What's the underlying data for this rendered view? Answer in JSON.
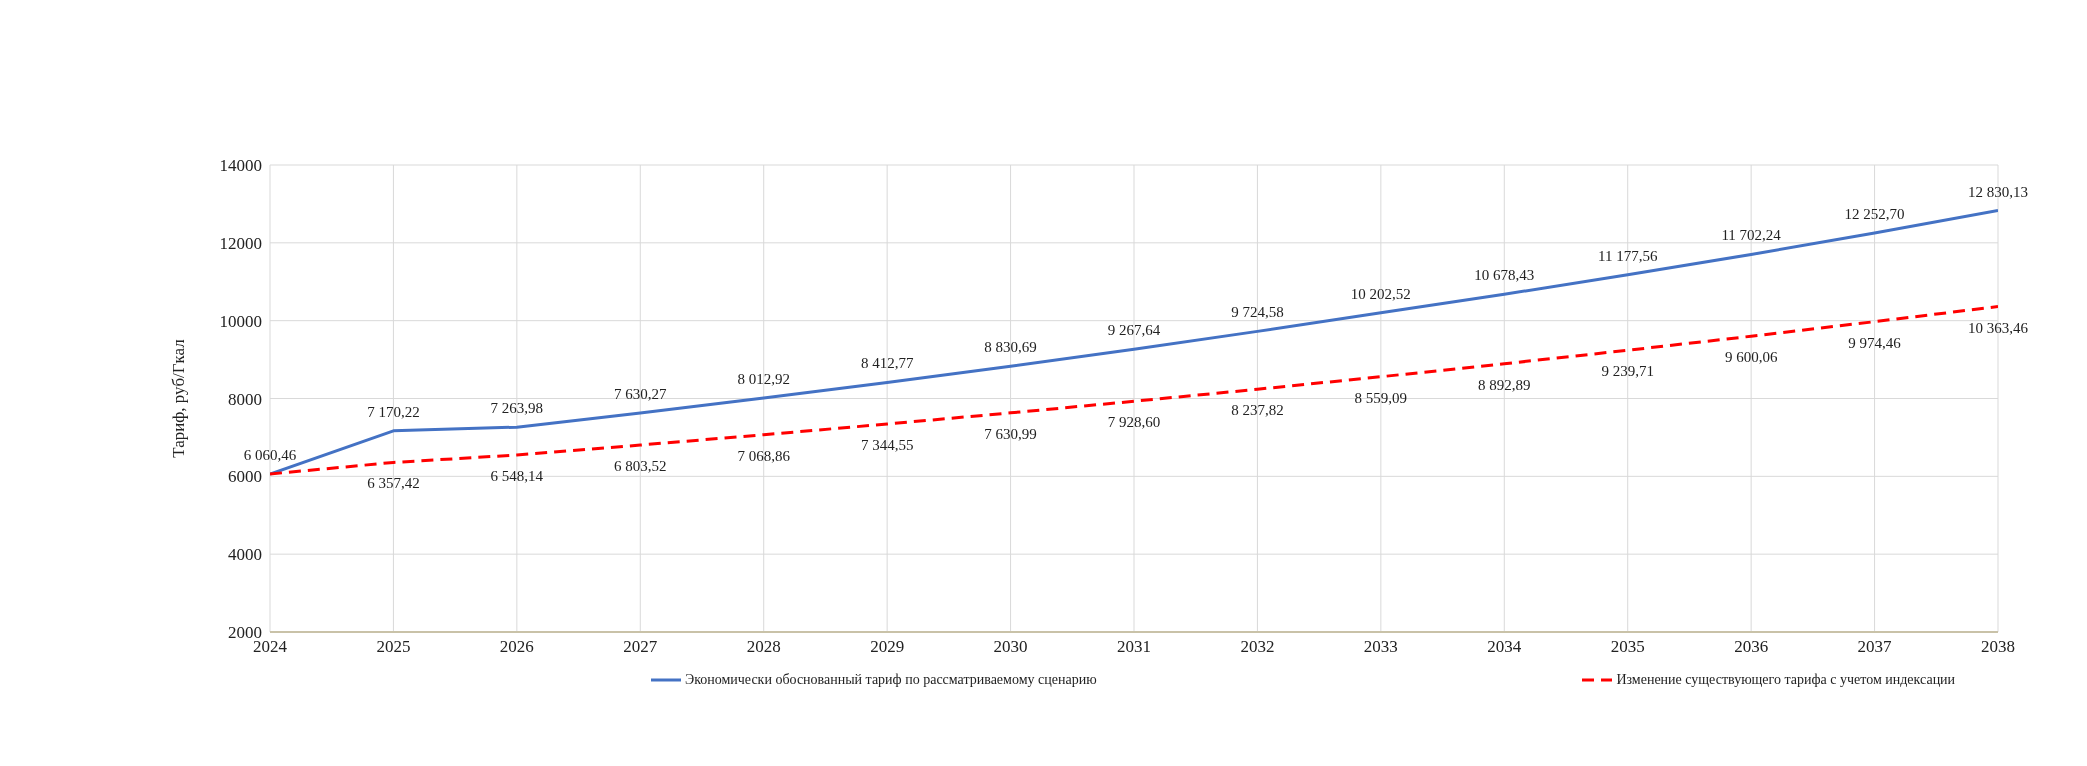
{
  "chart_data": {
    "type": "line",
    "ylabel": "Тариф, руб/Гкал",
    "x": [
      2024,
      2025,
      2026,
      2027,
      2028,
      2029,
      2030,
      2031,
      2032,
      2033,
      2034,
      2035,
      2036,
      2037,
      2038
    ],
    "xlim": [
      2024,
      2038
    ],
    "xticks": [
      2024,
      2025,
      2026,
      2027,
      2028,
      2029,
      2030,
      2031,
      2032,
      2033,
      2034,
      2035,
      2036,
      2037,
      2038
    ],
    "ylim": [
      2000,
      14000
    ],
    "yticks": [
      2000,
      4000,
      6000,
      8000,
      10000,
      12000,
      14000
    ],
    "grid": true,
    "legend": "bottom",
    "marker": "none",
    "series": [
      {
        "name": "Экономически обоснованный тариф по рассматриваемому сценарию",
        "color": "#4472c4",
        "line_style": "solid",
        "values": [
          6060.46,
          7170.22,
          7263.98,
          7630.27,
          8012.92,
          8412.77,
          8830.69,
          9267.64,
          9724.58,
          10202.52,
          10678.43,
          11177.56,
          11702.24,
          12252.7,
          12830.13
        ],
        "value_labels": [
          "6 060,46",
          "7 170,22",
          "7 263,98",
          "7 630,27",
          "8 012,92",
          "8 412,77",
          "8 830,69",
          "9 267,64",
          "9 724,58",
          "10 202,52",
          "10 678,43",
          "11 177,56",
          "11 702,24",
          "12 252,70",
          "12 830,13"
        ]
      },
      {
        "name": "Изменение существующего тарифа с учетом индексации",
        "color": "#ff0000",
        "line_style": "dashed",
        "values": [
          6060,
          6357.42,
          6548.14,
          6803.52,
          7068.86,
          7344.55,
          7630.99,
          7928.6,
          8237.82,
          8559.09,
          8892.89,
          9239.71,
          9600.06,
          9974.46,
          10363.46
        ],
        "value_labels": [
          null,
          "6 357,42",
          "6 548,14",
          "6 803,52",
          "7 068,86",
          "7 344,55",
          "7 630,99",
          "7 928,60",
          "8 237,82",
          "8 559,09",
          "8 892,89",
          "9 239,71",
          "9 600,06",
          "9 974,46",
          "10 363,46"
        ]
      }
    ]
  }
}
